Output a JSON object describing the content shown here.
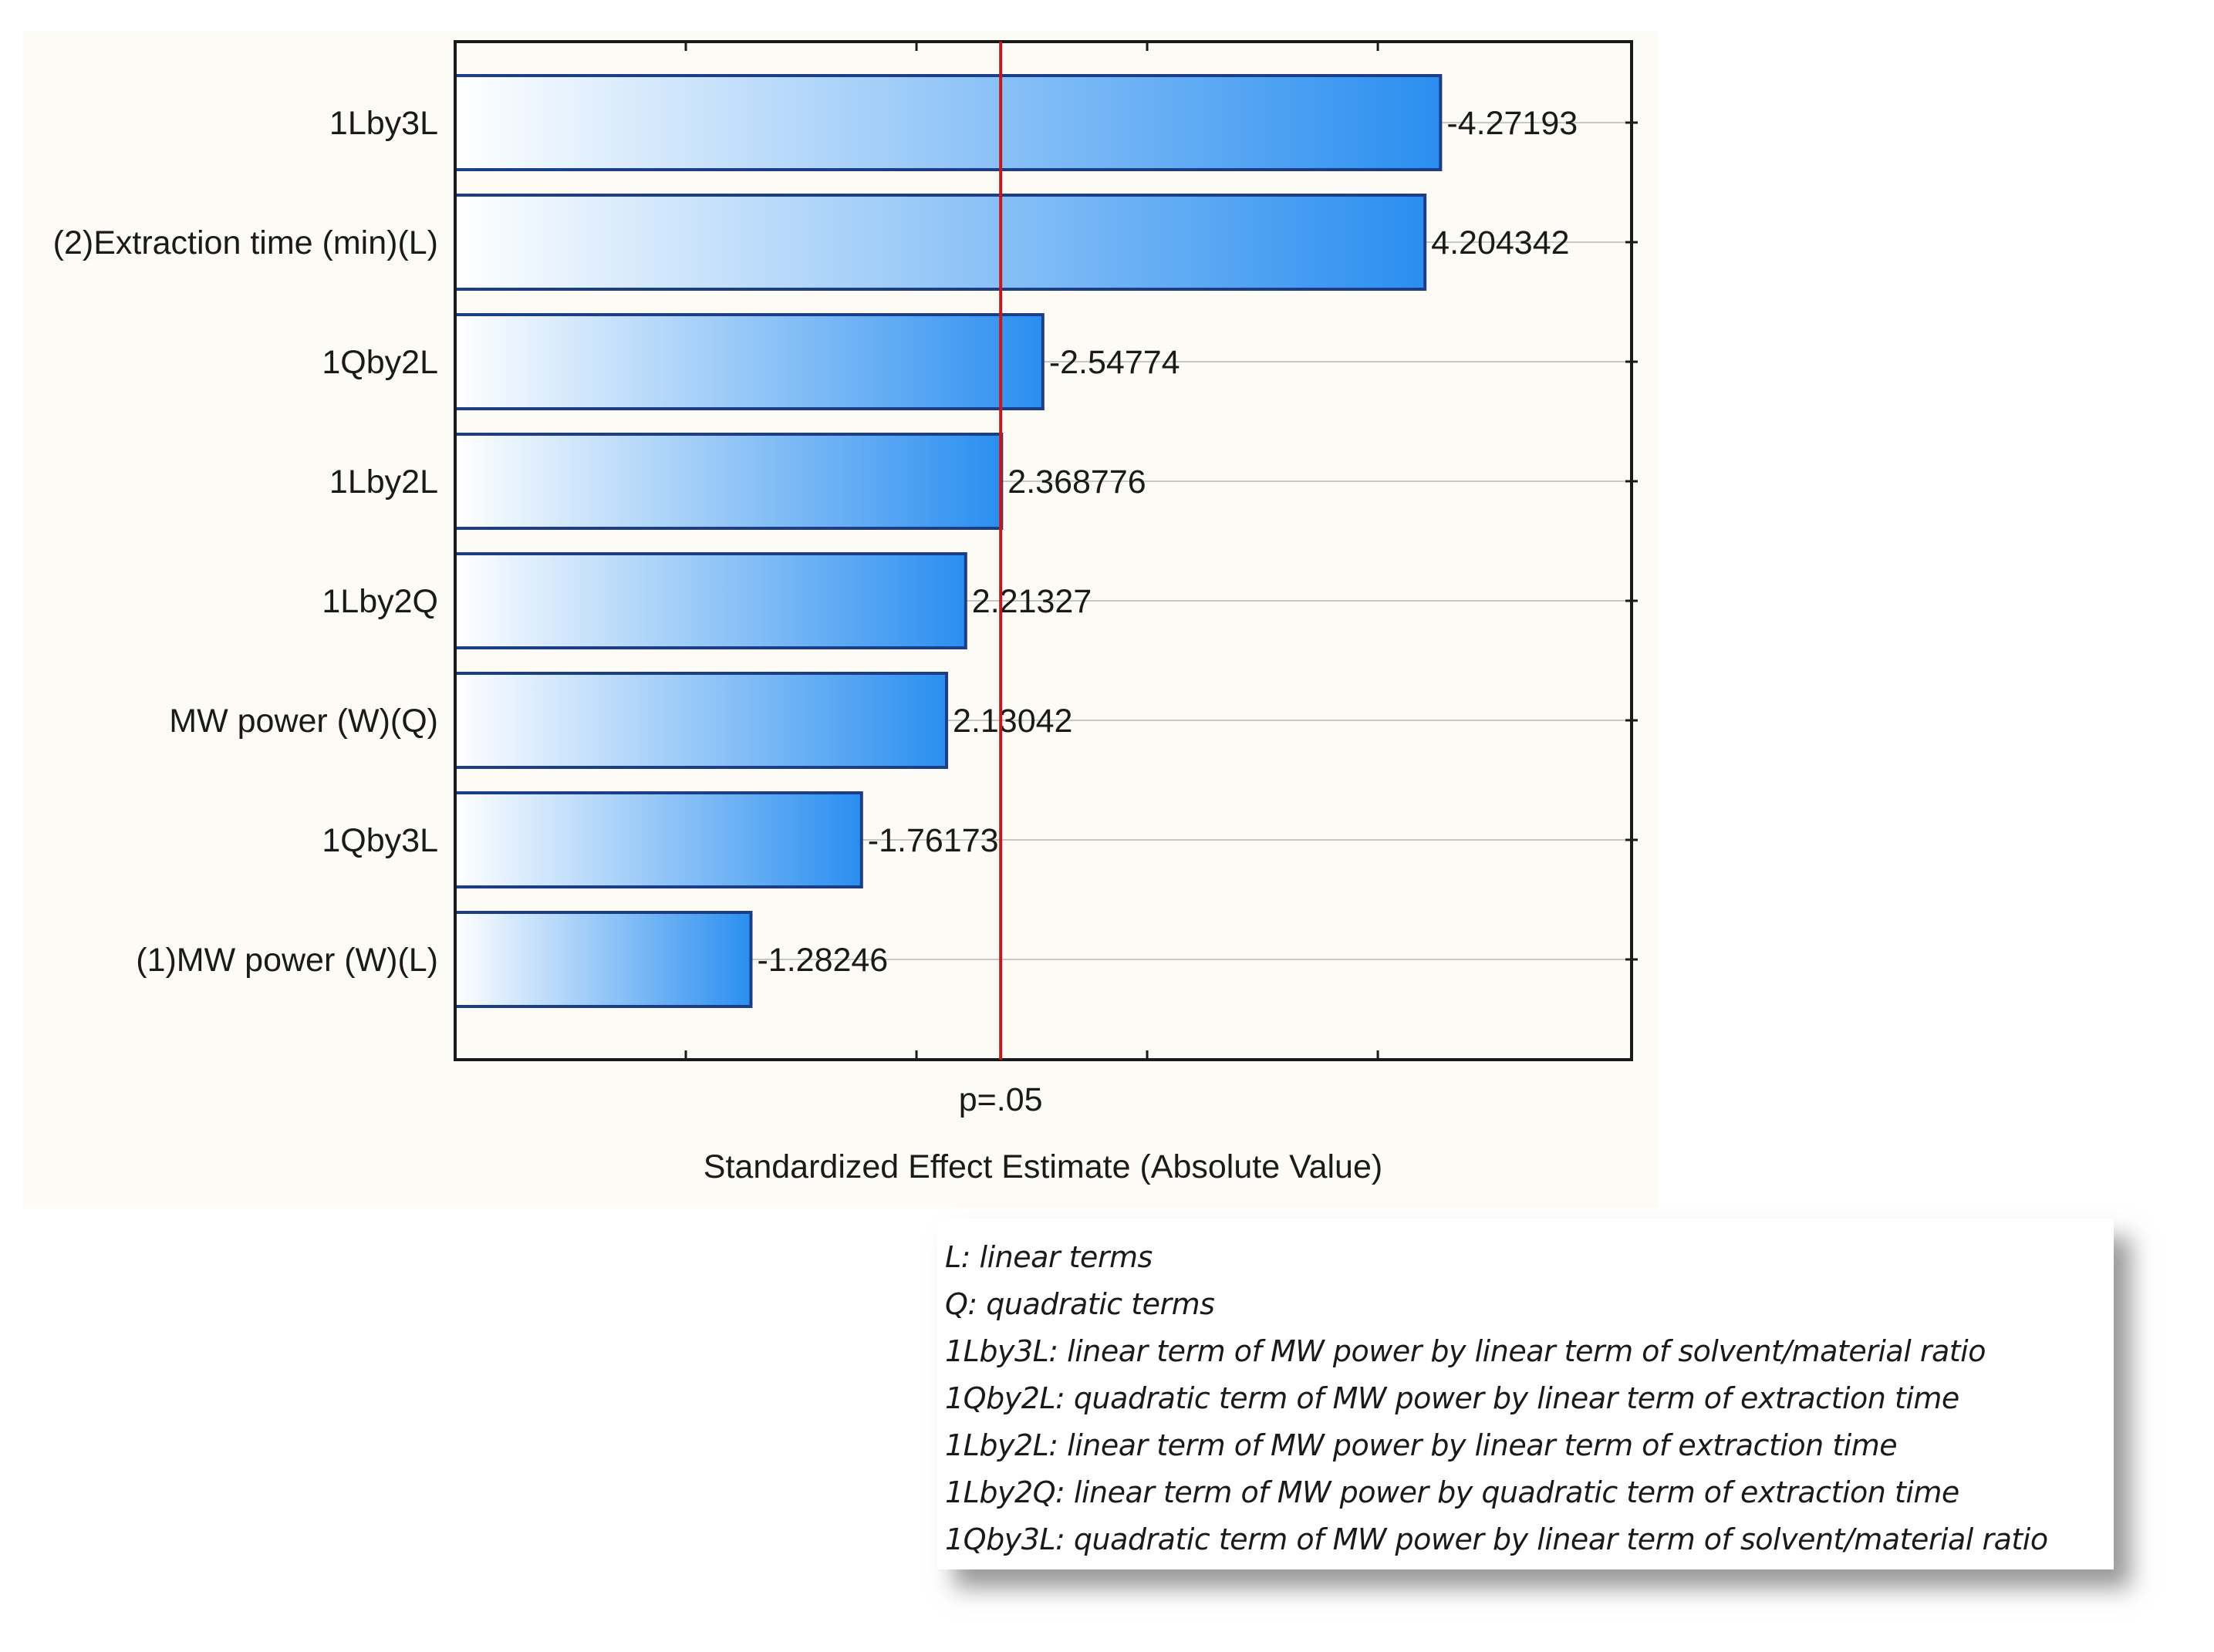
{
  "chart_data": {
    "type": "bar",
    "orientation": "horizontal",
    "categories": [
      "1Lby3L",
      "(2)Extraction time (min)(L)",
      "1Qby2L",
      "1Lby2L",
      "1Lby2Q",
      "MW power (W)(Q)",
      "1Qby3L",
      "(1)MW power (W)(L)"
    ],
    "values": [
      4.27193,
      4.204342,
      2.54774,
      2.368776,
      2.21327,
      2.13042,
      1.76173,
      1.28246
    ],
    "data_labels": [
      "-4.27193",
      "4.204342",
      "-2.54774",
      "2.368776",
      "2.21327",
      "2.13042",
      "-1.76173",
      "-1.28246"
    ],
    "xlabel": "Standardized Effect Estimate (Absolute Value)",
    "reference_line": {
      "value": 2.365,
      "label": "p=.05",
      "color": "#c0191e"
    },
    "xlim": [
      0,
      5.1
    ],
    "bar_gradient": [
      "#ffffff",
      "#2a8ef0"
    ],
    "bar_edge": "#1b3e86",
    "grid": true
  },
  "legend_notes": [
    "L: linear terms",
    "Q: quadratic terms",
    "1Lby3L: linear term of MW power by linear term of solvent/material ratio",
    "1Qby2L: quadratic term of MW power by linear term of extraction time",
    "1Lby2L: linear term of MW power by linear term of extraction time",
    "1Lby2Q: linear term of MW power by quadratic term of extraction time",
    "1Qby3L: quadratic term of MW power by linear term of solvent/material ratio"
  ]
}
